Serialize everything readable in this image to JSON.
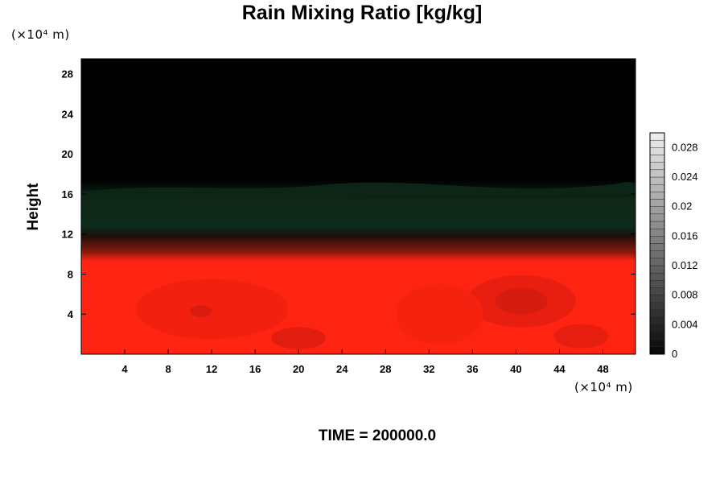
{
  "chart_data": {
    "type": "heatmap",
    "title": "Rain Mixing Ratio [kg/kg]",
    "ylabel": "Height",
    "xlabel": "",
    "x_unit": "(×10⁴ m)",
    "y_unit": "(×10⁴ m)",
    "footer": "TIME = 200000.0",
    "xlim": [
      0,
      51
    ],
    "ylim": [
      0,
      29.5
    ],
    "x_ticks": [
      4,
      8,
      12,
      16,
      20,
      24,
      28,
      32,
      36,
      40,
      44,
      48
    ],
    "y_ticks": [
      4,
      8,
      12,
      16,
      20,
      24,
      28
    ],
    "colorbar": {
      "min": 0,
      "max": 0.03,
      "ticks": [
        0,
        0.004,
        0.008,
        0.012,
        0.016,
        0.02,
        0.024,
        0.028
      ],
      "tick_labels": [
        "0",
        "0.004",
        "0.008",
        "0.012",
        "0.016",
        "0.02",
        "0.024",
        "0.028"
      ]
    },
    "layers": [
      {
        "from_height": 0,
        "to_height": 9.6,
        "color": "#ff2412"
      },
      {
        "from_height": 9.6,
        "to_height": 12.3,
        "color": "#3a0b04"
      },
      {
        "from_height": 12.3,
        "to_height": 16.4,
        "color": "#10291a"
      },
      {
        "from_height": 16.4,
        "to_height": 29.5,
        "color": "#000000"
      }
    ]
  }
}
